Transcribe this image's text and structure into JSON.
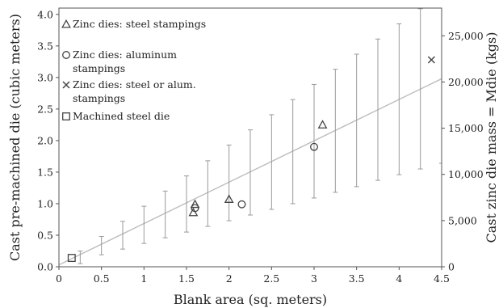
{
  "chart_data": {
    "type": "scatter",
    "xlabel": "Blank area (sq. meters)",
    "ylabel": "Cast pre-machined die (cubic meters)",
    "y2label": "Cast zinc die mass = Mdie (kgs)",
    "xlim": [
      0,
      4.5
    ],
    "ylim": [
      0,
      4.1
    ],
    "y2lim": [
      0,
      28000
    ],
    "x_ticks": [
      "0",
      "0.5",
      "1",
      "1.5",
      "2",
      "2.5",
      "3",
      "3.5",
      "4",
      "4.5"
    ],
    "y_ticks": [
      "0.0",
      "0.5",
      "1.0",
      "1.5",
      "2.0",
      "2.5",
      "3.0",
      "3.5",
      "4.0"
    ],
    "y2_ticks": [
      "0",
      "5,000",
      "10,000",
      "15,000",
      "20,000",
      "25,000"
    ],
    "legend_placement": "top-left",
    "grid": false,
    "colors": {
      "trend": "#bdbdbd",
      "error_bars": "#9a9a9a",
      "markers": "#444444",
      "axes": "#555555"
    },
    "series": [
      {
        "name": "Zinc dies: steel stampings",
        "marker": "triangle",
        "points": [
          {
            "x": 1.58,
            "y": 0.86
          },
          {
            "x": 1.6,
            "y": 0.99
          },
          {
            "x": 2.0,
            "y": 1.07
          },
          {
            "x": 3.1,
            "y": 2.25
          }
        ]
      },
      {
        "name": "Zinc dies: aluminum stampings",
        "marker": "circle",
        "points": [
          {
            "x": 1.6,
            "y": 0.93
          },
          {
            "x": 2.15,
            "y": 0.99
          },
          {
            "x": 3.0,
            "y": 1.9
          }
        ]
      },
      {
        "name": "Zinc dies: steel or alum. stampings",
        "marker": "x",
        "points": [
          {
            "x": 4.38,
            "y": 3.28
          }
        ]
      },
      {
        "name": "Machined steel die",
        "marker": "square",
        "points": [
          {
            "x": 0.15,
            "y": 0.14
          }
        ]
      }
    ],
    "trend_line": {
      "x": [
        0,
        4.5
      ],
      "y": [
        0.03,
        2.98
      ]
    },
    "error_bars": [
      {
        "x": 0.25,
        "y": 0.16,
        "low": 0.05,
        "high": 0.25
      },
      {
        "x": 0.5,
        "y": 0.33,
        "low": 0.19,
        "high": 0.48
      },
      {
        "x": 0.75,
        "y": 0.5,
        "low": 0.28,
        "high": 0.72
      },
      {
        "x": 1.0,
        "y": 0.66,
        "low": 0.37,
        "high": 0.96
      },
      {
        "x": 1.25,
        "y": 0.83,
        "low": 0.46,
        "high": 1.2
      },
      {
        "x": 1.5,
        "y": 1.0,
        "low": 0.55,
        "high": 1.44
      },
      {
        "x": 1.75,
        "y": 1.16,
        "low": 0.64,
        "high": 1.68
      },
      {
        "x": 2.0,
        "y": 1.33,
        "low": 0.73,
        "high": 1.93
      },
      {
        "x": 2.25,
        "y": 1.49,
        "low": 0.82,
        "high": 2.17
      },
      {
        "x": 2.5,
        "y": 1.66,
        "low": 0.91,
        "high": 2.41
      },
      {
        "x": 2.75,
        "y": 1.83,
        "low": 1.0,
        "high": 2.65
      },
      {
        "x": 3.0,
        "y": 1.99,
        "low": 1.09,
        "high": 2.89
      },
      {
        "x": 3.25,
        "y": 2.16,
        "low": 1.18,
        "high": 3.13
      },
      {
        "x": 3.5,
        "y": 2.32,
        "low": 1.27,
        "high": 3.37
      },
      {
        "x": 3.75,
        "y": 2.49,
        "low": 1.37,
        "high": 3.61
      },
      {
        "x": 4.0,
        "y": 2.65,
        "low": 1.46,
        "high": 3.85
      },
      {
        "x": 4.25,
        "y": 2.82,
        "low": 1.55,
        "high": 4.09
      },
      {
        "x": 4.5,
        "y": 2.98,
        "low": 1.64,
        "high": 4.33
      }
    ]
  }
}
